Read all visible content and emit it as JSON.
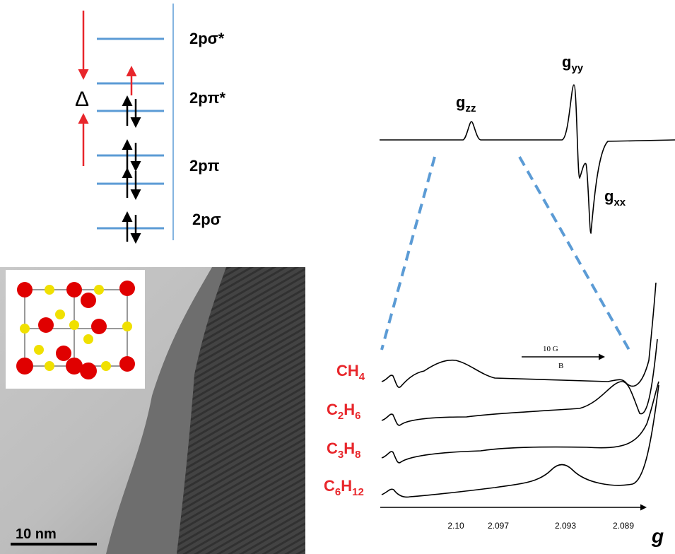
{
  "energy_diagram": {
    "gap_symbol": "Δ",
    "levels": [
      "2pσ*",
      "2pπ*",
      "2pπ",
      "2pσ"
    ]
  },
  "epr_spectrum": {
    "labels": [
      [
        "g",
        "zz"
      ],
      [
        "g",
        "yy"
      ],
      [
        "g",
        "xx"
      ]
    ]
  },
  "tem_image": {
    "scale_bar": "10 nm"
  },
  "adsorbate_spectra": {
    "field_arrow": {
      "label": "10 G",
      "field": "B"
    },
    "molecules": [
      [
        "CH",
        "4"
      ],
      [
        "C",
        "2",
        "H",
        "6"
      ],
      [
        "C",
        "3",
        "H",
        "8"
      ],
      [
        "C",
        "6",
        "H",
        "12"
      ]
    ],
    "axis": {
      "ticks": [
        "2.10",
        "2.097",
        "2.093",
        "2.089"
      ],
      "label": "g"
    }
  }
}
